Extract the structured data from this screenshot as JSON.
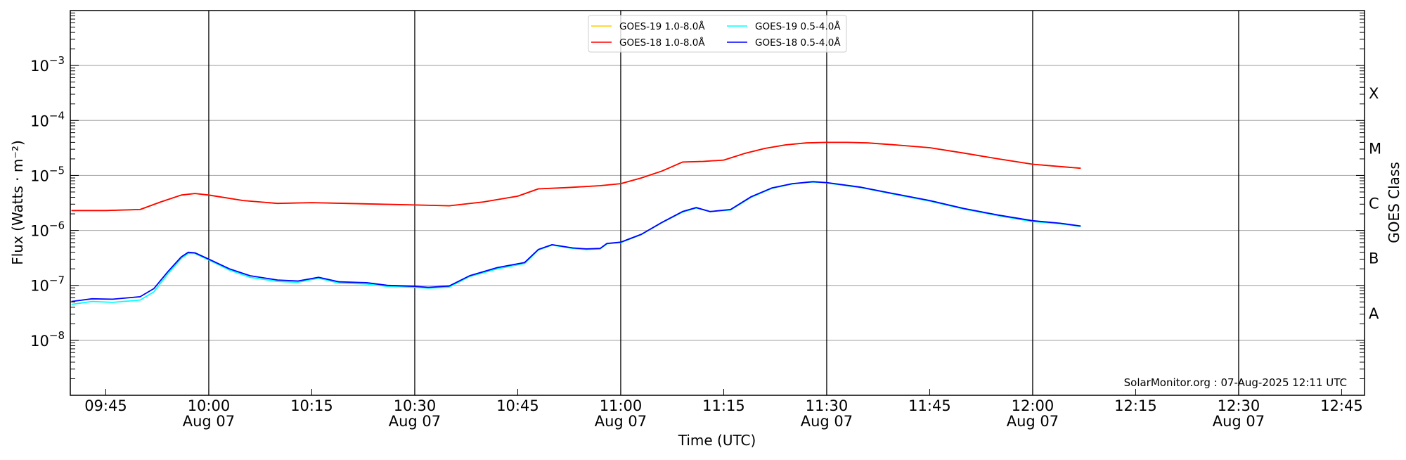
{
  "chart_data": {
    "type": "line",
    "title": "",
    "xlabel": "Time (UTC)",
    "ylabel": "Flux (Watts · m⁻²)",
    "ylabel_right": "GOES Class",
    "yscale": "log",
    "ylim": [
      1e-09,
      0.01
    ],
    "xlim": [
      "09:39:50",
      "12:48:20"
    ],
    "yticks": [
      {
        "value": 1e-08,
        "base": "10",
        "exp": "−8"
      },
      {
        "value": 1e-07,
        "base": "10",
        "exp": "−7"
      },
      {
        "value": 1e-06,
        "base": "10",
        "exp": "−6"
      },
      {
        "value": 1e-05,
        "base": "10",
        "exp": "−5"
      },
      {
        "value": 0.0001,
        "base": "10",
        "exp": "−4"
      },
      {
        "value": 0.001,
        "base": "10",
        "exp": "−3"
      }
    ],
    "xticks": [
      {
        "time": "09:45",
        "label": "09:45",
        "date": ""
      },
      {
        "time": "10:00",
        "label": "10:00",
        "date": "Aug 07"
      },
      {
        "time": "10:15",
        "label": "10:15",
        "date": ""
      },
      {
        "time": "10:30",
        "label": "10:30",
        "date": "Aug 07"
      },
      {
        "time": "10:45",
        "label": "10:45",
        "date": ""
      },
      {
        "time": "11:00",
        "label": "11:00",
        "date": "Aug 07"
      },
      {
        "time": "11:15",
        "label": "11:15",
        "date": ""
      },
      {
        "time": "11:30",
        "label": "11:30",
        "date": "Aug 07"
      },
      {
        "time": "11:45",
        "label": "11:45",
        "date": ""
      },
      {
        "time": "12:00",
        "label": "12:00",
        "date": "Aug 07"
      },
      {
        "time": "12:15",
        "label": "12:15",
        "date": ""
      },
      {
        "time": "12:30",
        "label": "12:30",
        "date": "Aug 07"
      },
      {
        "time": "12:45",
        "label": "12:45",
        "date": ""
      }
    ],
    "goes_classes": [
      {
        "label": "A",
        "low": 1e-08
      },
      {
        "label": "B",
        "low": 1e-07
      },
      {
        "label": "C",
        "low": 1e-06
      },
      {
        "label": "M",
        "low": 1e-05
      },
      {
        "label": "X",
        "low": 0.0001
      }
    ],
    "grid": true,
    "legend_placement": "top-center",
    "annotation": "SolarMonitor.org : 07-Aug-2025 12:11 UTC",
    "series": [
      {
        "name": "GOES-19 1.0-8.0Å",
        "color": "#ffcc00",
        "x": [
          "09:40",
          "09:45",
          "09:50",
          "09:53",
          "09:56",
          "09:58",
          "10:00",
          "10:05",
          "10:10",
          "10:15",
          "10:20",
          "10:25",
          "10:30",
          "10:35",
          "10:40",
          "10:45",
          "10:48",
          "10:52",
          "10:57",
          "11:00",
          "11:03",
          "11:06",
          "11:09",
          "11:12",
          "11:15",
          "11:18",
          "11:21",
          "11:24",
          "11:27",
          "11:30",
          "11:33",
          "11:36",
          "11:40",
          "11:45",
          "11:50",
          "11:55",
          "12:00",
          "12:04",
          "12:07"
        ],
        "y": [
          2.3e-06,
          2.3e-06,
          2.4e-06,
          3.3e-06,
          4.4e-06,
          4.7e-06,
          4.4e-06,
          3.5e-06,
          3.1e-06,
          3.2e-06,
          3.1e-06,
          3e-06,
          2.9e-06,
          2.8e-06,
          3.3e-06,
          4.2e-06,
          5.7e-06,
          6e-06,
          6.5e-06,
          7.1e-06,
          9e-06,
          1.2e-05,
          1.75e-05,
          1.8e-05,
          1.9e-05,
          2.5e-05,
          3.1e-05,
          3.6e-05,
          3.9e-05,
          4e-05,
          4e-05,
          3.9e-05,
          3.6e-05,
          3.2e-05,
          2.55e-05,
          2e-05,
          1.6e-05,
          1.45e-05,
          1.35e-05
        ]
      },
      {
        "name": "GOES-18 1.0-8.0Å",
        "color": "#ff0000",
        "x": [
          "09:40",
          "09:45",
          "09:50",
          "09:53",
          "09:56",
          "09:58",
          "10:00",
          "10:05",
          "10:10",
          "10:15",
          "10:20",
          "10:25",
          "10:30",
          "10:35",
          "10:40",
          "10:45",
          "10:48",
          "10:52",
          "10:57",
          "11:00",
          "11:03",
          "11:06",
          "11:09",
          "11:12",
          "11:15",
          "11:18",
          "11:21",
          "11:24",
          "11:27",
          "11:30",
          "11:33",
          "11:36",
          "11:40",
          "11:45",
          "11:50",
          "11:55",
          "12:00",
          "12:04",
          "12:07"
        ],
        "y": [
          2.3e-06,
          2.3e-06,
          2.4e-06,
          3.3e-06,
          4.4e-06,
          4.7e-06,
          4.4e-06,
          3.5e-06,
          3.1e-06,
          3.2e-06,
          3.1e-06,
          3e-06,
          2.9e-06,
          2.8e-06,
          3.3e-06,
          4.2e-06,
          5.7e-06,
          6e-06,
          6.5e-06,
          7.1e-06,
          9e-06,
          1.2e-05,
          1.75e-05,
          1.8e-05,
          1.9e-05,
          2.5e-05,
          3.1e-05,
          3.6e-05,
          3.9e-05,
          4e-05,
          4e-05,
          3.9e-05,
          3.6e-05,
          3.2e-05,
          2.55e-05,
          2e-05,
          1.6e-05,
          1.45e-05,
          1.35e-05
        ]
      },
      {
        "name": "GOES-19 0.5-4.0Å",
        "color": "#00ffff",
        "x": [
          "09:40",
          "09:43",
          "09:46",
          "09:50",
          "09:52",
          "09:54",
          "09:56",
          "09:57",
          "09:58",
          "10:00",
          "10:03",
          "10:06",
          "10:10",
          "10:13",
          "10:16",
          "10:19",
          "10:23",
          "10:26",
          "10:30",
          "10:32",
          "10:35",
          "10:38",
          "10:42",
          "10:46",
          "10:48",
          "10:50",
          "10:53",
          "10:55",
          "10:57",
          "10:58",
          "11:00",
          "11:03",
          "11:06",
          "11:09",
          "11:11",
          "11:13",
          "11:16",
          "11:19",
          "11:22",
          "11:25",
          "11:28",
          "11:30",
          "11:35",
          "11:40",
          "11:45",
          "11:50",
          "11:55",
          "12:00",
          "12:04",
          "12:07"
        ],
        "y": [
          4.5e-08,
          5.1e-08,
          4.9e-08,
          5.4e-08,
          7.6e-08,
          1.6e-07,
          3.1e-07,
          3.8e-07,
          3.8e-07,
          2.9e-07,
          1.9e-07,
          1.4e-07,
          1.18e-07,
          1.14e-07,
          1.35e-07,
          1.1e-07,
          1.06e-07,
          9.6e-08,
          9.2e-08,
          8.9e-08,
          9.3e-08,
          1.45e-07,
          2e-07,
          2.5e-07,
          4.4e-07,
          5.4e-07,
          4.7e-07,
          4.5e-07,
          4.6e-07,
          5.7e-07,
          6e-07,
          8.4e-07,
          1.38e-06,
          2.15e-06,
          2.55e-06,
          2.2e-06,
          2.35e-06,
          4e-06,
          5.8e-06,
          7e-06,
          7.6e-06,
          7.3e-06,
          6e-06,
          4.5e-06,
          3.4e-06,
          2.45e-06,
          1.85e-06,
          1.45e-06,
          1.32e-06,
          1.18e-06
        ]
      },
      {
        "name": "GOES-18 0.5-4.0Å",
        "color": "#0000ff",
        "x": [
          "09:40",
          "09:43",
          "09:46",
          "09:50",
          "09:52",
          "09:54",
          "09:56",
          "09:57",
          "09:58",
          "10:00",
          "10:03",
          "10:06",
          "10:10",
          "10:13",
          "10:16",
          "10:19",
          "10:23",
          "10:26",
          "10:30",
          "10:32",
          "10:35",
          "10:38",
          "10:42",
          "10:46",
          "10:48",
          "10:50",
          "10:53",
          "10:55",
          "10:57",
          "10:58",
          "11:00",
          "11:03",
          "11:06",
          "11:09",
          "11:11",
          "11:13",
          "11:16",
          "11:19",
          "11:22",
          "11:25",
          "11:28",
          "11:30",
          "11:35",
          "11:40",
          "11:45",
          "11:50",
          "11:55",
          "12:00",
          "12:04",
          "12:07"
        ],
        "y": [
          5.1e-08,
          5.7e-08,
          5.6e-08,
          6.2e-08,
          8.7e-08,
          1.75e-07,
          3.3e-07,
          4e-07,
          3.9e-07,
          3e-07,
          2e-07,
          1.5e-07,
          1.25e-07,
          1.2e-07,
          1.4e-07,
          1.16e-07,
          1.12e-07,
          1e-07,
          9.6e-08,
          9.2e-08,
          9.7e-08,
          1.5e-07,
          2.1e-07,
          2.6e-07,
          4.5e-07,
          5.5e-07,
          4.8e-07,
          4.6e-07,
          4.7e-07,
          5.8e-07,
          6.1e-07,
          8.5e-07,
          1.4e-06,
          2.2e-06,
          2.6e-06,
          2.2e-06,
          2.4e-06,
          4.1e-06,
          5.9e-06,
          7.1e-06,
          7.7e-06,
          7.4e-06,
          6.1e-06,
          4.6e-06,
          3.5e-06,
          2.5e-06,
          1.9e-06,
          1.5e-06,
          1.35e-06,
          1.2e-06
        ]
      }
    ]
  }
}
